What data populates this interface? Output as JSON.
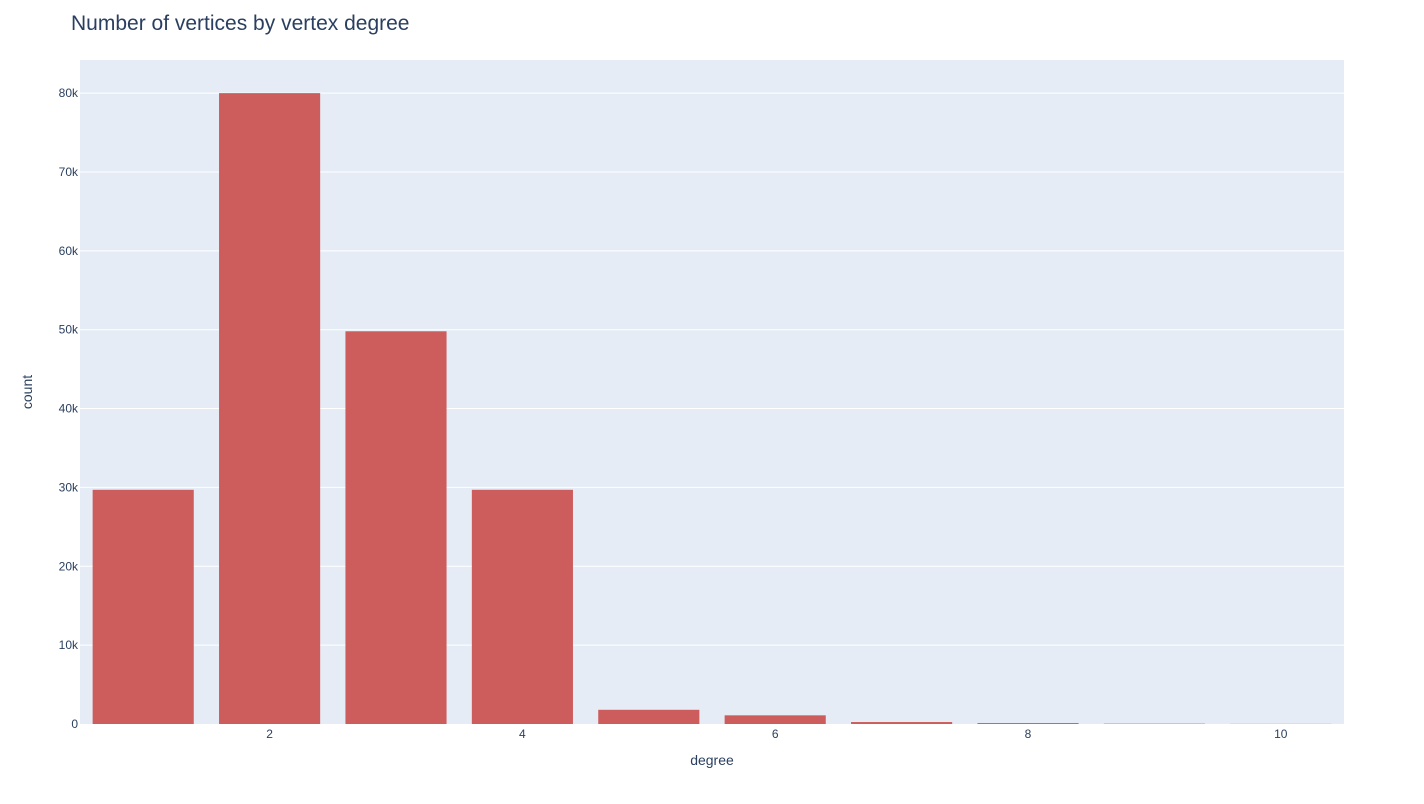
{
  "chart_data": {
    "type": "bar",
    "title": "Number of vertices by vertex degree",
    "xlabel": "degree",
    "ylabel": "count",
    "x": [
      1,
      2,
      3,
      4,
      5,
      6,
      7,
      8,
      9,
      10
    ],
    "values": [
      29700,
      80000,
      49800,
      29700,
      1800,
      1100,
      250,
      120,
      40,
      15
    ],
    "x_ticks": [
      2,
      4,
      6,
      8,
      10
    ],
    "x_tick_labels": [
      "2",
      "4",
      "6",
      "8",
      "10"
    ],
    "xlim": [
      0.5,
      10.5
    ],
    "y_ticks": [
      0,
      10000,
      20000,
      30000,
      40000,
      50000,
      60000,
      70000,
      80000
    ],
    "y_tick_labels": [
      "0",
      "10k",
      "20k",
      "30k",
      "40k",
      "50k",
      "60k",
      "70k",
      "80k"
    ],
    "ylim": [
      0,
      84200
    ],
    "grid": true,
    "legend": "none",
    "colors": {
      "bar": "#cd5c5c",
      "plot_background": "#e5ecf6",
      "gridline": "#ffffff",
      "text": "#2a3f5f"
    }
  }
}
